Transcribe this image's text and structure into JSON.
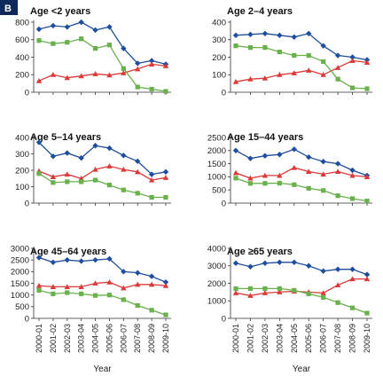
{
  "figure_label": "B",
  "colors": {
    "blue": "#1f4e9c",
    "red": "#d93a3a",
    "green": "#6ab04c",
    "panel_bg": "#dfe1ee",
    "label_bg": "#0e2a5c"
  },
  "chart_data": [
    {
      "type": "line",
      "title": "Age <2 years",
      "xlabel": "Year",
      "categories": [
        "2000-01",
        "2001-02",
        "2002-03",
        "2003-04",
        "2004-05",
        "2005-06",
        "2006-07",
        "2007-08",
        "2008-09",
        "2009-10"
      ],
      "ylim": [
        0,
        800
      ],
      "yticks": [
        0,
        200,
        400,
        600,
        800
      ],
      "series": [
        {
          "color": "blue",
          "marker": "diamond",
          "values": [
            720,
            760,
            745,
            800,
            710,
            745,
            500,
            330,
            360,
            320
          ]
        },
        {
          "color": "red",
          "marker": "triangle",
          "values": [
            130,
            200,
            165,
            185,
            210,
            195,
            220,
            265,
            320,
            300
          ]
        },
        {
          "color": "green",
          "marker": "square",
          "values": [
            590,
            555,
            570,
            610,
            500,
            540,
            270,
            60,
            35,
            10
          ]
        }
      ]
    },
    {
      "type": "line",
      "title": "Age 2–4 years",
      "xlabel": "Year",
      "categories": [
        "2000-01",
        "2001-02",
        "2002-03",
        "2003-04",
        "2004-05",
        "2005-06",
        "2006-07",
        "2007-08",
        "2008-09",
        "2009-10"
      ],
      "ylim": [
        0,
        400
      ],
      "yticks": [
        0,
        100,
        200,
        300,
        400
      ],
      "series": [
        {
          "color": "blue",
          "marker": "diamond",
          "values": [
            325,
            330,
            335,
            325,
            315,
            335,
            265,
            210,
            200,
            185
          ]
        },
        {
          "color": "red",
          "marker": "triangle",
          "values": [
            60,
            75,
            80,
            100,
            110,
            125,
            100,
            140,
            180,
            170
          ]
        },
        {
          "color": "green",
          "marker": "square",
          "values": [
            265,
            255,
            255,
            230,
            210,
            210,
            175,
            75,
            25,
            20
          ]
        }
      ]
    },
    {
      "type": "line",
      "title": "Age 5–14 years",
      "xlabel": "Year",
      "categories": [
        "2000-01",
        "2001-02",
        "2002-03",
        "2003-04",
        "2004-05",
        "2005-06",
        "2006-07",
        "2007-08",
        "2008-09",
        "2009-10"
      ],
      "ylim": [
        0,
        400
      ],
      "yticks": [
        0,
        100,
        200,
        300,
        400
      ],
      "series": [
        {
          "color": "blue",
          "marker": "diamond",
          "values": [
            370,
            285,
            305,
            275,
            350,
            335,
            290,
            255,
            175,
            190
          ]
        },
        {
          "color": "red",
          "marker": "triangle",
          "values": [
            195,
            160,
            175,
            150,
            205,
            225,
            205,
            190,
            140,
            155
          ]
        },
        {
          "color": "green",
          "marker": "square",
          "values": [
            180,
            125,
            130,
            130,
            140,
            110,
            80,
            60,
            35,
            35
          ]
        }
      ]
    },
    {
      "type": "line",
      "title": "Age 15–44 years",
      "xlabel": "Year",
      "categories": [
        "2000-01",
        "2001-02",
        "2002-03",
        "2003-04",
        "2004-05",
        "2005-06",
        "2006-07",
        "2007-08",
        "2008-09",
        "2009-10"
      ],
      "ylim": [
        0,
        2500
      ],
      "yticks": [
        0,
        500,
        1000,
        1500,
        2000,
        2500
      ],
      "series": [
        {
          "color": "blue",
          "marker": "diamond",
          "values": [
            2000,
            1700,
            1800,
            1850,
            2050,
            1750,
            1580,
            1500,
            1250,
            1050
          ]
        },
        {
          "color": "red",
          "marker": "triangle",
          "values": [
            1150,
            950,
            1050,
            1050,
            1350,
            1200,
            1100,
            1200,
            1050,
            1000
          ]
        },
        {
          "color": "green",
          "marker": "square",
          "values": [
            950,
            750,
            750,
            760,
            700,
            560,
            480,
            280,
            170,
            80
          ]
        }
      ]
    },
    {
      "type": "line",
      "title": "Age 45–64 years",
      "xlabel": "Year",
      "categories": [
        "2000-01",
        "2001-02",
        "2002-03",
        "2003-04",
        "2004-05",
        "2005-06",
        "2006-07",
        "2007-08",
        "2008-09",
        "2009-10"
      ],
      "ylim": [
        0,
        3000
      ],
      "yticks": [
        0,
        500,
        1000,
        1500,
        2000,
        2500,
        3000
      ],
      "series": [
        {
          "color": "blue",
          "marker": "diamond",
          "values": [
            2600,
            2400,
            2500,
            2450,
            2500,
            2550,
            2000,
            1950,
            1800,
            1550
          ]
        },
        {
          "color": "red",
          "marker": "triangle",
          "values": [
            1400,
            1350,
            1350,
            1350,
            1500,
            1550,
            1300,
            1450,
            1450,
            1400
          ]
        },
        {
          "color": "green",
          "marker": "square",
          "values": [
            1200,
            1050,
            1100,
            1050,
            980,
            1000,
            800,
            550,
            350,
            150
          ]
        }
      ]
    },
    {
      "type": "line",
      "title": "Age ≥65 years",
      "xlabel": "Year",
      "categories": [
        "2000-01",
        "2001-02",
        "2002-03",
        "2003-04",
        "2004-05",
        "2005-06",
        "2006-07",
        "2007-08",
        "2008-09",
        "2009-10"
      ],
      "ylim": [
        0,
        4000
      ],
      "yticks": [
        0,
        1000,
        2000,
        3000,
        4000
      ],
      "series": [
        {
          "color": "blue",
          "marker": "diamond",
          "values": [
            3150,
            2950,
            3150,
            3200,
            3200,
            3000,
            2700,
            2800,
            2800,
            2500
          ]
        },
        {
          "color": "red",
          "marker": "triangle",
          "values": [
            1450,
            1300,
            1450,
            1500,
            1550,
            1500,
            1450,
            1900,
            2250,
            2250
          ]
        },
        {
          "color": "green",
          "marker": "square",
          "values": [
            1700,
            1700,
            1700,
            1700,
            1600,
            1400,
            1200,
            900,
            600,
            300
          ]
        }
      ]
    }
  ]
}
